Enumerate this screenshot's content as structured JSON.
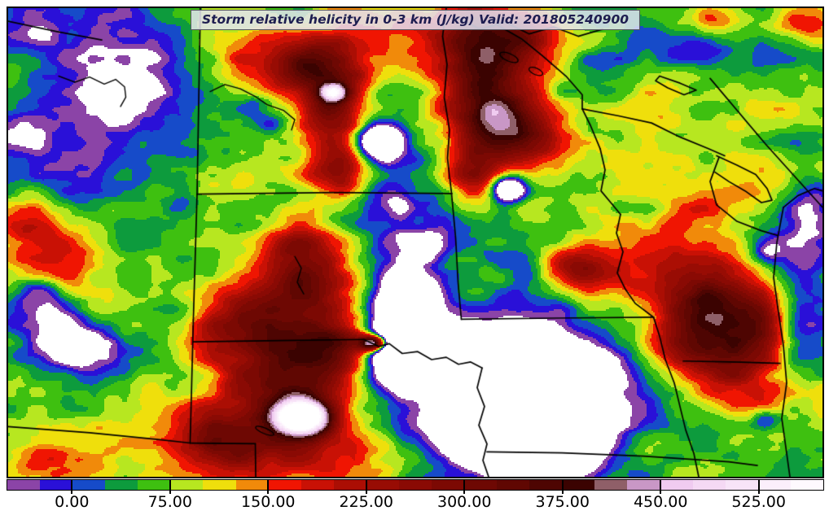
{
  "title": {
    "text": "Storm relative helicity in 0-3 km (J/kg) Valid: 201805240900"
  },
  "colorbar": {
    "tick_labels": [
      "0.00",
      "75.00",
      "150.00",
      "225.00",
      "300.00",
      "375.00",
      "450.00",
      "525.00"
    ],
    "tick_values": [
      0,
      75,
      150,
      225,
      300,
      375,
      450,
      525
    ],
    "vmin": -50,
    "vmax": 575,
    "step": 25,
    "colors": [
      "#8b44a7",
      "#2a10d8",
      "#164bc9",
      "#0d9b3d",
      "#3ec010",
      "#b7e720",
      "#efdf0c",
      "#f18a0a",
      "#f01502",
      "#c91105",
      "#ab0e04",
      "#980c04",
      "#8a0a04",
      "#7c0903",
      "#6e0803",
      "#600702",
      "#4e0502",
      "#3b0301",
      "#8f5f68",
      "#c997c6",
      "#f0cbf0",
      "#f5d9f4",
      "#f8e4f8",
      "#fbeffb",
      "#fef9fe"
    ],
    "under_color": "#ffffff",
    "over_color": "#ffffff",
    "outline_color": "#000000"
  },
  "map": {
    "region": "Northern Plains / Upper Midwest USA",
    "frame_color": "#000000",
    "border_line_color": "#000000",
    "base_value": 56,
    "noise_octaves": [
      [
        7,
        42
      ],
      [
        14,
        36
      ],
      [
        28,
        26
      ],
      [
        56,
        14
      ]
    ],
    "blobs": [
      [
        0.16,
        0.17,
        -75,
        0.13,
        0.11
      ],
      [
        0.06,
        0.3,
        -55,
        0.07,
        0.09
      ],
      [
        0.035,
        0.055,
        -90,
        0.022,
        0.025
      ],
      [
        0.3,
        0.21,
        -75,
        0.02,
        0.018
      ],
      [
        0.325,
        0.245,
        -70,
        0.016,
        0.014
      ],
      [
        0.46,
        0.3,
        -60,
        0.04,
        0.1
      ],
      [
        0.455,
        0.285,
        -280,
        0.02,
        0.025
      ],
      [
        0.48,
        0.47,
        -55,
        0.035,
        0.08
      ],
      [
        0.478,
        0.42,
        -65,
        0.014,
        0.016
      ],
      [
        0.52,
        0.51,
        -65,
        0.012,
        0.02
      ],
      [
        0.49,
        0.66,
        -80,
        0.035,
        0.085
      ],
      [
        0.49,
        0.625,
        -300,
        0.022,
        0.03
      ],
      [
        0.475,
        0.75,
        -280,
        0.02,
        0.035
      ],
      [
        0.465,
        0.7,
        -200,
        0.018,
        0.03
      ],
      [
        0.615,
        0.385,
        -300,
        0.014,
        0.018
      ],
      [
        0.63,
        0.82,
        -300,
        0.09,
        0.11
      ],
      [
        0.645,
        0.86,
        -250,
        0.05,
        0.07
      ],
      [
        0.6,
        0.93,
        -180,
        0.05,
        0.06
      ],
      [
        0.67,
        0.89,
        -200,
        0.04,
        0.06
      ],
      [
        0.055,
        0.66,
        -180,
        0.03,
        0.045
      ],
      [
        0.1,
        0.73,
        -150,
        0.035,
        0.035
      ],
      [
        0.035,
        0.6,
        -110,
        0.02,
        0.03
      ],
      [
        0.975,
        0.6,
        -80,
        0.022,
        0.17
      ],
      [
        0.985,
        0.42,
        -60,
        0.02,
        0.07
      ],
      [
        0.93,
        0.5,
        -50,
        0.03,
        0.05
      ],
      [
        0.85,
        0.09,
        -70,
        0.035,
        0.03
      ],
      [
        0.93,
        0.13,
        -55,
        0.04,
        0.035
      ],
      [
        0.75,
        0.13,
        -45,
        0.06,
        0.05
      ],
      [
        0.64,
        0.52,
        -70,
        0.03,
        0.04
      ],
      [
        0.7,
        0.97,
        -60,
        0.05,
        0.04
      ],
      [
        0.93,
        0.875,
        -95,
        0.014,
        0.016
      ],
      [
        0.935,
        0.52,
        -90,
        0.013,
        0.02
      ],
      [
        0.055,
        0.57,
        140,
        0.045,
        0.075
      ],
      [
        0.02,
        0.46,
        110,
        0.03,
        0.05
      ],
      [
        0.3,
        0.68,
        250,
        0.055,
        0.075
      ],
      [
        0.35,
        0.85,
        260,
        0.055,
        0.07
      ],
      [
        0.4,
        0.72,
        220,
        0.04,
        0.05
      ],
      [
        0.26,
        0.92,
        200,
        0.04,
        0.05
      ],
      [
        0.37,
        0.6,
        190,
        0.04,
        0.045
      ],
      [
        0.36,
        0.52,
        170,
        0.035,
        0.05
      ],
      [
        0.36,
        0.875,
        560,
        0.022,
        0.025
      ],
      [
        0.45,
        0.715,
        500,
        0.012,
        0.012
      ],
      [
        0.395,
        0.22,
        240,
        0.032,
        0.075
      ],
      [
        0.41,
        0.35,
        190,
        0.025,
        0.04
      ],
      [
        0.37,
        0.12,
        190,
        0.04,
        0.04
      ],
      [
        0.4,
        0.18,
        300,
        0.012,
        0.014
      ],
      [
        0.585,
        0.21,
        230,
        0.032,
        0.07
      ],
      [
        0.62,
        0.26,
        210,
        0.04,
        0.05
      ],
      [
        0.6,
        0.1,
        190,
        0.045,
        0.04
      ],
      [
        0.57,
        0.35,
        170,
        0.025,
        0.04
      ],
      [
        0.47,
        0.07,
        100,
        0.1,
        0.05
      ],
      [
        0.57,
        0.045,
        120,
        0.035,
        0.03
      ],
      [
        0.63,
        0.05,
        110,
        0.03,
        0.025
      ],
      [
        0.985,
        0.03,
        120,
        0.03,
        0.03
      ],
      [
        0.875,
        0.025,
        90,
        0.025,
        0.02
      ],
      [
        0.87,
        0.63,
        170,
        0.045,
        0.06
      ],
      [
        0.89,
        0.78,
        180,
        0.05,
        0.06
      ],
      [
        0.84,
        0.71,
        130,
        0.04,
        0.05
      ],
      [
        0.92,
        0.68,
        140,
        0.03,
        0.05
      ],
      [
        0.8,
        0.55,
        90,
        0.13,
        0.18
      ],
      [
        0.69,
        0.55,
        130,
        0.03,
        0.03
      ],
      [
        0.42,
        0.97,
        80,
        0.1,
        0.04
      ],
      [
        0.04,
        0.97,
        90,
        0.05,
        0.04
      ],
      [
        0.28,
        0.12,
        100,
        0.05,
        0.05
      ]
    ],
    "state_borders": [
      [
        [
          0.236,
          0.0
        ],
        [
          0.234,
          0.2
        ],
        [
          0.232,
          0.397
        ]
      ],
      [
        [
          0.232,
          0.397
        ],
        [
          0.4,
          0.3935
        ],
        [
          0.545,
          0.3955
        ]
      ],
      [
        [
          0.232,
          0.397
        ],
        [
          0.2275,
          0.66
        ],
        [
          0.2235,
          0.928
        ]
      ],
      [
        [
          0.0,
          0.893
        ],
        [
          0.1,
          0.906
        ],
        [
          0.1835,
          0.9205
        ],
        [
          0.2235,
          0.928
        ]
      ],
      [
        [
          0.2235,
          0.928
        ],
        [
          0.3035,
          0.9295
        ]
      ],
      [
        [
          0.3035,
          0.9295
        ],
        [
          0.304,
          1.0
        ]
      ],
      [
        [
          0.2275,
          0.712
        ],
        [
          0.35,
          0.709
        ],
        [
          0.437,
          0.707
        ]
      ],
      [
        [
          0.437,
          0.707
        ],
        [
          0.455,
          0.722
        ],
        [
          0.468,
          0.716
        ],
        [
          0.484,
          0.737
        ],
        [
          0.503,
          0.733
        ],
        [
          0.52,
          0.75
        ],
        [
          0.538,
          0.745
        ],
        [
          0.553,
          0.76
        ],
        [
          0.568,
          0.755
        ],
        [
          0.582,
          0.768
        ]
      ],
      [
        [
          0.582,
          0.768
        ],
        [
          0.576,
          0.81
        ],
        [
          0.585,
          0.85
        ],
        [
          0.578,
          0.89
        ],
        [
          0.588,
          0.93
        ],
        [
          0.583,
          0.965
        ],
        [
          0.59,
          1.0
        ]
      ],
      [
        [
          0.588,
          0.947
        ],
        [
          0.68,
          0.949
        ],
        [
          0.78,
          0.956
        ],
        [
          0.885,
          0.968
        ],
        [
          0.92,
          0.976
        ]
      ],
      [
        [
          0.538,
          0.0
        ],
        [
          0.5335,
          0.06
        ],
        [
          0.539,
          0.12
        ],
        [
          0.5355,
          0.19
        ],
        [
          0.542,
          0.26
        ],
        [
          0.5395,
          0.32
        ],
        [
          0.5445,
          0.3955
        ]
      ],
      [
        [
          0.5445,
          0.3955
        ],
        [
          0.5495,
          0.49
        ],
        [
          0.5525,
          0.585
        ],
        [
          0.5565,
          0.664
        ]
      ],
      [
        [
          0.5565,
          0.664
        ],
        [
          0.67,
          0.6615
        ],
        [
          0.7925,
          0.6595
        ]
      ],
      [
        [
          0.727,
          0.3
        ],
        [
          0.733,
          0.345
        ],
        [
          0.728,
          0.39
        ],
        [
          0.74,
          0.415
        ],
        [
          0.752,
          0.44
        ]
      ],
      [
        [
          0.752,
          0.44
        ],
        [
          0.747,
          0.48
        ],
        [
          0.755,
          0.52
        ],
        [
          0.748,
          0.565
        ],
        [
          0.758,
          0.6
        ],
        [
          0.77,
          0.63
        ],
        [
          0.7925,
          0.6595
        ]
      ],
      [
        [
          0.7925,
          0.6595
        ],
        [
          0.8,
          0.7
        ],
        [
          0.807,
          0.75
        ],
        [
          0.818,
          0.8
        ],
        [
          0.825,
          0.85
        ],
        [
          0.832,
          0.9
        ],
        [
          0.842,
          0.95
        ],
        [
          0.848,
          1.0
        ]
      ],
      [
        [
          0.705,
          0.215
        ],
        [
          0.715,
          0.25
        ],
        [
          0.727,
          0.3
        ]
      ],
      [
        [
          0.705,
          0.215
        ],
        [
          0.75,
          0.23
        ],
        [
          0.79,
          0.245
        ],
        [
          0.825,
          0.275
        ],
        [
          0.86,
          0.3
        ],
        [
          0.88,
          0.315
        ]
      ],
      [
        [
          0.6,
          0.035
        ],
        [
          0.63,
          0.065
        ],
        [
          0.655,
          0.1
        ],
        [
          0.685,
          0.145
        ],
        [
          0.705,
          0.185
        ],
        [
          0.705,
          0.215
        ]
      ],
      [
        [
          0.862,
          0.15
        ],
        [
          0.93,
          0.29
        ],
        [
          1.0,
          0.425
        ]
      ],
      [
        [
          0.55,
          0.02
        ],
        [
          0.58,
          0.045
        ],
        [
          0.61,
          0.03
        ],
        [
          0.64,
          0.055
        ],
        [
          0.67,
          0.04
        ],
        [
          0.7,
          0.06
        ],
        [
          0.73,
          0.045
        ]
      ],
      [
        [
          0.87,
          0.315
        ],
        [
          0.895,
          0.335
        ],
        [
          0.918,
          0.355
        ],
        [
          0.932,
          0.385
        ],
        [
          0.938,
          0.41
        ],
        [
          0.925,
          0.415
        ],
        [
          0.905,
          0.39
        ],
        [
          0.885,
          0.37
        ],
        [
          0.868,
          0.35
        ]
      ],
      [
        [
          0.8,
          0.145
        ],
        [
          0.825,
          0.16
        ],
        [
          0.845,
          0.175
        ],
        [
          0.83,
          0.185
        ],
        [
          0.81,
          0.17
        ],
        [
          0.795,
          0.155
        ],
        [
          0.8,
          0.145
        ]
      ],
      [
        [
          0.952,
          0.425
        ],
        [
          0.944,
          0.5
        ],
        [
          0.94,
          0.575
        ],
        [
          0.946,
          0.65
        ],
        [
          0.952,
          0.72
        ],
        [
          0.956,
          0.8
        ],
        [
          0.95,
          0.875
        ],
        [
          0.956,
          0.95
        ],
        [
          0.96,
          1.0
        ]
      ],
      [
        [
          0.952,
          0.425
        ],
        [
          0.97,
          0.4
        ],
        [
          0.99,
          0.385
        ],
        [
          1.0,
          0.39
        ]
      ],
      [
        [
          0.829,
          0.753
        ],
        [
          0.9,
          0.7555
        ],
        [
          0.948,
          0.758
        ]
      ],
      [
        [
          0.873,
          0.318
        ],
        [
          0.862,
          0.37
        ],
        [
          0.87,
          0.42
        ],
        [
          0.895,
          0.455
        ],
        [
          0.925,
          0.475
        ],
        [
          0.945,
          0.485
        ]
      ],
      [
        [
          0.0,
          0.028
        ],
        [
          0.06,
          0.05
        ],
        [
          0.115,
          0.068
        ]
      ]
    ],
    "rivers": [
      [
        [
          0.062,
          0.145
        ],
        [
          0.082,
          0.158
        ],
        [
          0.1,
          0.147
        ],
        [
          0.118,
          0.162
        ],
        [
          0.132,
          0.152
        ],
        [
          0.143,
          0.168
        ],
        [
          0.1445,
          0.19
        ],
        [
          0.138,
          0.21
        ]
      ],
      [
        [
          0.248,
          0.178
        ],
        [
          0.266,
          0.163
        ],
        [
          0.285,
          0.172
        ],
        [
          0.303,
          0.188
        ],
        [
          0.318,
          0.206
        ],
        [
          0.338,
          0.218
        ],
        [
          0.352,
          0.238
        ],
        [
          0.348,
          0.26
        ]
      ],
      [
        [
          0.352,
          0.53
        ],
        [
          0.36,
          0.555
        ],
        [
          0.355,
          0.585
        ],
        [
          0.363,
          0.61
        ]
      ]
    ],
    "lakes": [
      [
        0.615,
        0.105,
        0.012,
        0.008
      ],
      [
        0.648,
        0.135,
        0.009,
        0.007
      ],
      [
        0.315,
        0.902,
        0.012,
        0.006
      ]
    ]
  },
  "chart_data": {
    "type": "heatmap",
    "title": "Storm relative helicity in 0-3 km (J/kg) Valid: 201805240900",
    "colorbar_ticks": [
      0.0,
      75.0,
      150.0,
      225.0,
      300.0,
      375.0,
      450.0,
      525.0
    ],
    "value_range": [
      -50,
      575
    ],
    "contour_interval": 25,
    "units": "J/kg",
    "legend_position": "bottom"
  }
}
